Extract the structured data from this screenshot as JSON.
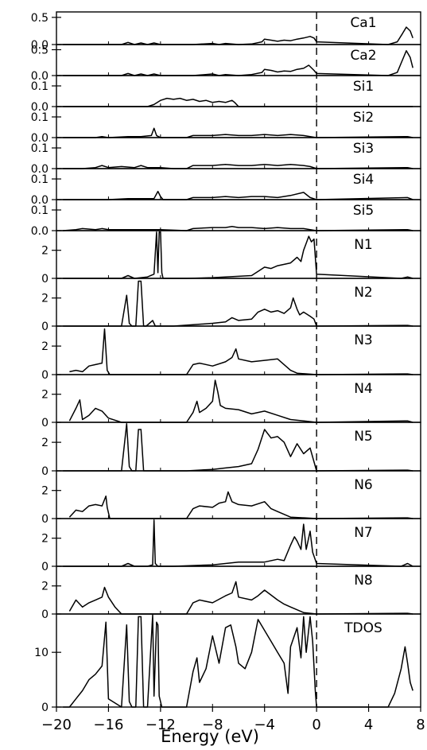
{
  "chart_data": {
    "type": "line",
    "title": "",
    "xlabel": "Energy (eV)",
    "xlim": [
      -20,
      8
    ],
    "xticks": [
      -20,
      -16,
      -12,
      -8,
      -4,
      0,
      4,
      8
    ],
    "xtick_labels": [
      "−20",
      "−16",
      "−12",
      "−8",
      "−4",
      "0",
      "4",
      "8"
    ],
    "fermi_level": 0,
    "panels": [
      {
        "name": "Ca1",
        "ylim": [
          0,
          0.6
        ],
        "yticks": [
          0,
          0.5
        ],
        "ytick_labels": [
          "0.0",
          "0.5"
        ],
        "x": [
          -19.5,
          -15,
          -14.5,
          -14,
          -13.5,
          -13,
          -12.5,
          -12,
          -11,
          -9.5,
          -8,
          -7.5,
          -7,
          -6,
          -5,
          -4.2,
          -4,
          -3.5,
          -3,
          -2.5,
          -2,
          -1.5,
          -1,
          -0.5,
          -0.2,
          0,
          5.5,
          6.2,
          6.6,
          6.9,
          7.2,
          7.4
        ],
        "y": [
          0,
          0,
          0.04,
          0,
          0.03,
          0,
          0.03,
          0,
          0,
          0,
          0.02,
          0,
          0.02,
          0,
          0.01,
          0.05,
          0.1,
          0.08,
          0.06,
          0.08,
          0.07,
          0.1,
          0.12,
          0.15,
          0.12,
          0.05,
          0,
          0.05,
          0.2,
          0.32,
          0.25,
          0.12
        ]
      },
      {
        "name": "Ca2",
        "ylim": [
          0,
          0.6
        ],
        "yticks": [
          0,
          0.5
        ],
        "ytick_labels": [
          "0.0",
          "0.5"
        ],
        "x": [
          -19.5,
          -15,
          -14.5,
          -14,
          -13.5,
          -13,
          -12.5,
          -12,
          -11,
          -9.5,
          -8,
          -7.5,
          -7,
          -6,
          -5,
          -4.2,
          -4,
          -3.5,
          -3,
          -2.5,
          -2,
          -1.5,
          -1,
          -0.6,
          -0.2,
          0,
          5.5,
          6.2,
          6.6,
          6.9,
          7.2,
          7.4
        ],
        "y": [
          0,
          0,
          0.04,
          0,
          0.03,
          0,
          0.03,
          0,
          0,
          0,
          0.03,
          0,
          0.02,
          0,
          0.02,
          0.06,
          0.12,
          0.1,
          0.07,
          0.09,
          0.08,
          0.12,
          0.14,
          0.2,
          0.1,
          0.04,
          0,
          0.06,
          0.3,
          0.48,
          0.35,
          0.15
        ]
      },
      {
        "name": "Si1",
        "ylim": [
          0,
          0.15
        ],
        "yticks": [
          0,
          0.1
        ],
        "ytick_labels": [
          "0.0",
          "0.1"
        ],
        "x": [
          -19.5,
          -14,
          -13,
          -12.5,
          -12,
          -11.5,
          -11,
          -10.5,
          -10,
          -9.5,
          -9,
          -8.5,
          -8,
          -7.5,
          -7,
          -6.5,
          -6.3,
          -6,
          0,
          7.4
        ],
        "y": [
          0,
          0,
          0,
          0.01,
          0.03,
          0.04,
          0.035,
          0.04,
          0.03,
          0.035,
          0.025,
          0.03,
          0.02,
          0.025,
          0.02,
          0.03,
          0.02,
          0,
          0,
          0
        ]
      },
      {
        "name": "Si2",
        "ylim": [
          0,
          0.15
        ],
        "yticks": [
          0,
          0.1
        ],
        "ytick_labels": [
          "0.0",
          "0.1"
        ],
        "x": [
          -19.5,
          -17,
          -16.5,
          -16,
          -14.5,
          -13.5,
          -12.7,
          -12.5,
          -12.3,
          -12,
          -10,
          -9.5,
          -8,
          -7,
          -6,
          -5,
          -4,
          -3,
          -2,
          -1,
          -0.5,
          0,
          7,
          7.4
        ],
        "y": [
          0,
          0,
          0.005,
          0,
          0.005,
          0.005,
          0.01,
          0.045,
          0.01,
          0,
          0,
          0.01,
          0.01,
          0.015,
          0.01,
          0.01,
          0.015,
          0.01,
          0.015,
          0.01,
          0.005,
          0,
          0.005,
          0
        ]
      },
      {
        "name": "Si3",
        "ylim": [
          0,
          0.15
        ],
        "yticks": [
          0,
          0.1
        ],
        "ytick_labels": [
          "0.0",
          "0.1"
        ],
        "x": [
          -19.5,
          -18,
          -17,
          -16.5,
          -16,
          -15,
          -14,
          -13.5,
          -13,
          -12,
          -11,
          -10,
          -9.5,
          -8,
          -7,
          -6,
          -5,
          -4,
          -3,
          -2,
          -1,
          -0.5,
          0,
          7,
          7.4
        ],
        "y": [
          0,
          0,
          0.005,
          0.015,
          0.005,
          0.01,
          0.005,
          0.015,
          0.005,
          0.005,
          0,
          0,
          0.015,
          0.015,
          0.02,
          0.015,
          0.015,
          0.02,
          0.015,
          0.02,
          0.015,
          0.01,
          0,
          0.005,
          0
        ]
      },
      {
        "name": "Si4",
        "ylim": [
          0,
          0.15
        ],
        "yticks": [
          0,
          0.1
        ],
        "ytick_labels": [
          "0.0",
          "0.1"
        ],
        "x": [
          -19.5,
          -16,
          -14.5,
          -13.5,
          -12.5,
          -12.2,
          -12,
          -11.8,
          -11,
          -10,
          -9.5,
          -8,
          -7,
          -6,
          -5,
          -4,
          -3,
          -2,
          -1,
          -0.5,
          0,
          7,
          7.4
        ],
        "y": [
          0,
          0,
          0.005,
          0.005,
          0.005,
          0.04,
          0.015,
          0,
          0,
          0,
          0.01,
          0.01,
          0.015,
          0.01,
          0.015,
          0.015,
          0.01,
          0.02,
          0.035,
          0.01,
          0,
          0.01,
          0
        ]
      },
      {
        "name": "Si5",
        "ylim": [
          0,
          0.15
        ],
        "yticks": [
          0,
          0.1
        ],
        "ytick_labels": [
          "0.0",
          "0.1"
        ],
        "x": [
          -19.5,
          -18.5,
          -18,
          -17,
          -16.5,
          -16,
          -15,
          -14,
          -13,
          -12,
          -10,
          -9.5,
          -8,
          -7,
          -6.5,
          -6,
          -5,
          -4,
          -3,
          -2,
          -1,
          -0.5,
          0,
          7,
          7.4
        ],
        "y": [
          0,
          0.005,
          0.01,
          0.005,
          0.01,
          0.005,
          0.005,
          0.005,
          0.005,
          0.005,
          0,
          0.01,
          0.015,
          0.015,
          0.02,
          0.015,
          0.015,
          0.01,
          0.015,
          0.01,
          0.01,
          0.005,
          0,
          0.005,
          0
        ]
      },
      {
        "name": "N1",
        "ylim": [
          0,
          3.4
        ],
        "yticks": [
          0,
          2
        ],
        "ytick_labels": [
          "0",
          "2"
        ],
        "x": [
          -19.5,
          -15,
          -14.5,
          -14,
          -13,
          -12.5,
          -12.3,
          -12.2,
          -12.1,
          -12,
          -11.9,
          -11.8,
          -10,
          -8,
          -7,
          -6,
          -5,
          -4.5,
          -4,
          -3.5,
          -3,
          -2.5,
          -2,
          -1.5,
          -1.2,
          -1,
          -0.8,
          -0.6,
          -0.4,
          -0.2,
          0,
          6.5,
          7,
          7.4
        ],
        "y": [
          0,
          0,
          0.2,
          0,
          0.1,
          0.3,
          3.3,
          0.4,
          3.3,
          3.3,
          0.4,
          0,
          0,
          0.05,
          0.1,
          0.15,
          0.2,
          0.5,
          0.8,
          0.7,
          0.9,
          1.0,
          1.1,
          1.5,
          1.2,
          2.0,
          2.5,
          3.0,
          2.6,
          2.8,
          0.3,
          0,
          0.1,
          0
        ]
      },
      {
        "name": "N2",
        "ylim": [
          0,
          3.4
        ],
        "yticks": [
          0,
          2
        ],
        "ytick_labels": [
          "0",
          "2"
        ],
        "x": [
          -19.5,
          -15,
          -14.6,
          -14.4,
          -14.2,
          -13.9,
          -13.7,
          -13.5,
          -13.3,
          -13.1,
          -12.6,
          -12.4,
          -12.2,
          -11,
          -8,
          -7,
          -6.5,
          -6,
          -5,
          -4.5,
          -4,
          -3.5,
          -3,
          -2.5,
          -2,
          -1.8,
          -1.5,
          -1.3,
          -1,
          -0.5,
          -0.2,
          0,
          7,
          7.4
        ],
        "y": [
          0,
          0,
          2.2,
          0.2,
          0,
          0,
          3.2,
          3.2,
          0,
          0,
          0.4,
          0,
          0,
          0,
          0.2,
          0.3,
          0.6,
          0.4,
          0.5,
          1.0,
          1.2,
          1.0,
          1.1,
          0.9,
          1.3,
          2.0,
          1.2,
          0.8,
          1.0,
          0.7,
          0.5,
          0,
          0.05,
          0
        ]
      },
      {
        "name": "N3",
        "ylim": [
          0,
          3.4
        ],
        "yticks": [
          0,
          2
        ],
        "ytick_labels": [
          "0",
          "2"
        ],
        "x": [
          -19,
          -18.5,
          -18,
          -17.5,
          -17,
          -16.5,
          -16.3,
          -16.1,
          -15.9,
          -15,
          -12,
          -10,
          -9.5,
          -9,
          -8,
          -7,
          -6.5,
          -6.2,
          -6,
          -5,
          -4,
          -3,
          -2,
          -1.5,
          0,
          7,
          7.4
        ],
        "y": [
          0.2,
          0.3,
          0.2,
          0.6,
          0.7,
          0.8,
          3.2,
          0.3,
          0,
          0,
          0,
          0,
          0.7,
          0.8,
          0.6,
          0.9,
          1.2,
          1.8,
          1.1,
          0.9,
          1.0,
          1.1,
          0.3,
          0.1,
          0,
          0.05,
          0
        ]
      },
      {
        "name": "N4",
        "ylim": [
          0,
          3.4
        ],
        "yticks": [
          0,
          2
        ],
        "ytick_labels": [
          "0",
          "2"
        ],
        "x": [
          -19,
          -18.5,
          -18.2,
          -18,
          -17.5,
          -17,
          -16.5,
          -16,
          -15,
          -10,
          -9.5,
          -9.2,
          -9,
          -8.5,
          -8,
          -7.8,
          -7.6,
          -7.4,
          -7,
          -6,
          -5,
          -4,
          -3,
          -2,
          0,
          7,
          7.4
        ],
        "y": [
          0.1,
          1.0,
          1.6,
          0.2,
          0.5,
          1.0,
          0.8,
          0.3,
          0,
          0,
          0.7,
          1.5,
          0.7,
          1.0,
          1.5,
          3.0,
          2.2,
          1.2,
          1.0,
          0.9,
          0.6,
          0.8,
          0.5,
          0.2,
          0,
          0.1,
          0
        ]
      },
      {
        "name": "N5",
        "ylim": [
          0,
          3.4
        ],
        "yticks": [
          0,
          2
        ],
        "ytick_labels": [
          "0",
          "2"
        ],
        "x": [
          -19.5,
          -15,
          -14.6,
          -14.4,
          -14.2,
          -13.9,
          -13.7,
          -13.5,
          -13.3,
          -13.1,
          -12,
          -10,
          -8,
          -7,
          -6,
          -5,
          -4.5,
          -4,
          -3.5,
          -3,
          -2.5,
          -2,
          -1.5,
          -1,
          -0.5,
          0,
          7,
          7.4
        ],
        "y": [
          0,
          0,
          3.3,
          0.3,
          0,
          0,
          2.9,
          2.9,
          0,
          0,
          0,
          0,
          0.1,
          0.2,
          0.3,
          0.5,
          1.5,
          2.9,
          2.3,
          2.4,
          2.0,
          1.0,
          1.9,
          1.2,
          1.6,
          0,
          0.05,
          0
        ]
      },
      {
        "name": "N6",
        "ylim": [
          0,
          3.4
        ],
        "yticks": [
          0,
          2
        ],
        "ytick_labels": [
          "0",
          "2"
        ],
        "x": [
          -19,
          -18.5,
          -18,
          -17.5,
          -17,
          -16.5,
          -16.2,
          -16.1,
          -15.9,
          -15,
          -12,
          -10,
          -9.5,
          -9,
          -8,
          -7.5,
          -7,
          -6.8,
          -6.5,
          -6,
          -5,
          -4,
          -3.5,
          -3,
          -2,
          0,
          7,
          7.4
        ],
        "y": [
          0.1,
          0.6,
          0.5,
          0.9,
          1.0,
          0.9,
          1.6,
          0.8,
          0,
          0,
          0,
          0,
          0.7,
          0.9,
          0.8,
          1.1,
          1.2,
          1.9,
          1.2,
          1.0,
          0.9,
          1.2,
          0.7,
          0.5,
          0.1,
          0,
          0.05,
          0
        ]
      },
      {
        "name": "N7",
        "ylim": [
          0,
          3.4
        ],
        "yticks": [
          0,
          2
        ],
        "ytick_labels": [
          "0",
          "2"
        ],
        "x": [
          -19.5,
          -15,
          -14.5,
          -14,
          -13,
          -12.6,
          -12.5,
          -12.4,
          -12.2,
          -11,
          -8,
          -7,
          -6,
          -5,
          -4,
          -3,
          -2.5,
          -2,
          -1.7,
          -1.5,
          -1.2,
          -1,
          -0.8,
          -0.5,
          -0.3,
          0,
          6.5,
          7,
          7.4
        ],
        "y": [
          0,
          0,
          0.2,
          0,
          0,
          0.1,
          3.3,
          0.2,
          0,
          0,
          0.1,
          0.2,
          0.3,
          0.3,
          0.3,
          0.5,
          0.4,
          1.5,
          2.1,
          1.8,
          1.2,
          3.0,
          1.2,
          2.5,
          1.0,
          0.2,
          0,
          0.2,
          0
        ]
      },
      {
        "name": "N8",
        "ylim": [
          0,
          3.4
        ],
        "yticks": [
          0,
          2
        ],
        "ytick_labels": [
          "0",
          "2"
        ],
        "x": [
          -19,
          -18.5,
          -18,
          -17.5,
          -17,
          -16.5,
          -16.3,
          -16,
          -15.5,
          -15,
          -12,
          -10,
          -9.5,
          -9,
          -8,
          -7,
          -6.5,
          -6.2,
          -6,
          -5,
          -4.5,
          -4,
          -3,
          -2.5,
          -2,
          -1.5,
          -1,
          0,
          7,
          7.4
        ],
        "y": [
          0.2,
          1.0,
          0.5,
          0.8,
          1.0,
          1.2,
          1.9,
          1.2,
          0.5,
          0,
          0,
          0,
          0.8,
          1.0,
          0.8,
          1.3,
          1.5,
          2.3,
          1.2,
          1.0,
          1.3,
          1.7,
          1.0,
          0.7,
          0.5,
          0.3,
          0.1,
          0,
          0.05,
          0
        ]
      },
      {
        "name": "TDOS",
        "ylim": [
          0,
          17
        ],
        "yticks": [
          0,
          10
        ],
        "ytick_labels": [
          "0",
          "10"
        ],
        "x": [
          -19.5,
          -19,
          -18.5,
          -18,
          -17.5,
          -17,
          -16.5,
          -16.2,
          -16,
          -15,
          -14.6,
          -14.4,
          -14.2,
          -13.9,
          -13.7,
          -13.5,
          -13.3,
          -13,
          -12.6,
          -12.5,
          -12.3,
          -12.2,
          -12.1,
          -11.9,
          -10,
          -9.5,
          -9.2,
          -9,
          -8.5,
          -8,
          -7.5,
          -7,
          -6.6,
          -6.2,
          -6,
          -5.5,
          -5,
          -4.5,
          -4,
          -3.5,
          -3,
          -2.5,
          -2.2,
          -2,
          -1.5,
          -1.2,
          -1,
          -0.8,
          -0.5,
          -0.3,
          -0.1,
          0,
          5.5,
          6,
          6.5,
          6.8,
          7,
          7.2,
          7.4
        ],
        "y": [
          0,
          0,
          1.5,
          3.0,
          5.0,
          6.0,
          7.5,
          15.5,
          1.5,
          0,
          15.0,
          1.0,
          0,
          0,
          16.5,
          16.5,
          0,
          0,
          17,
          2,
          15.5,
          15.0,
          2,
          0,
          0,
          6.5,
          9.0,
          4.5,
          7.0,
          13.0,
          8.0,
          14.5,
          15.0,
          11.0,
          8.0,
          7.0,
          10.0,
          16.0,
          14.0,
          12.0,
          10.0,
          8.0,
          2.5,
          11.0,
          14.5,
          9.0,
          16.5,
          10.0,
          16.5,
          12.0,
          3.0,
          0,
          0,
          2.5,
          7.0,
          11.0,
          8.0,
          4.5,
          3.0
        ]
      }
    ]
  }
}
